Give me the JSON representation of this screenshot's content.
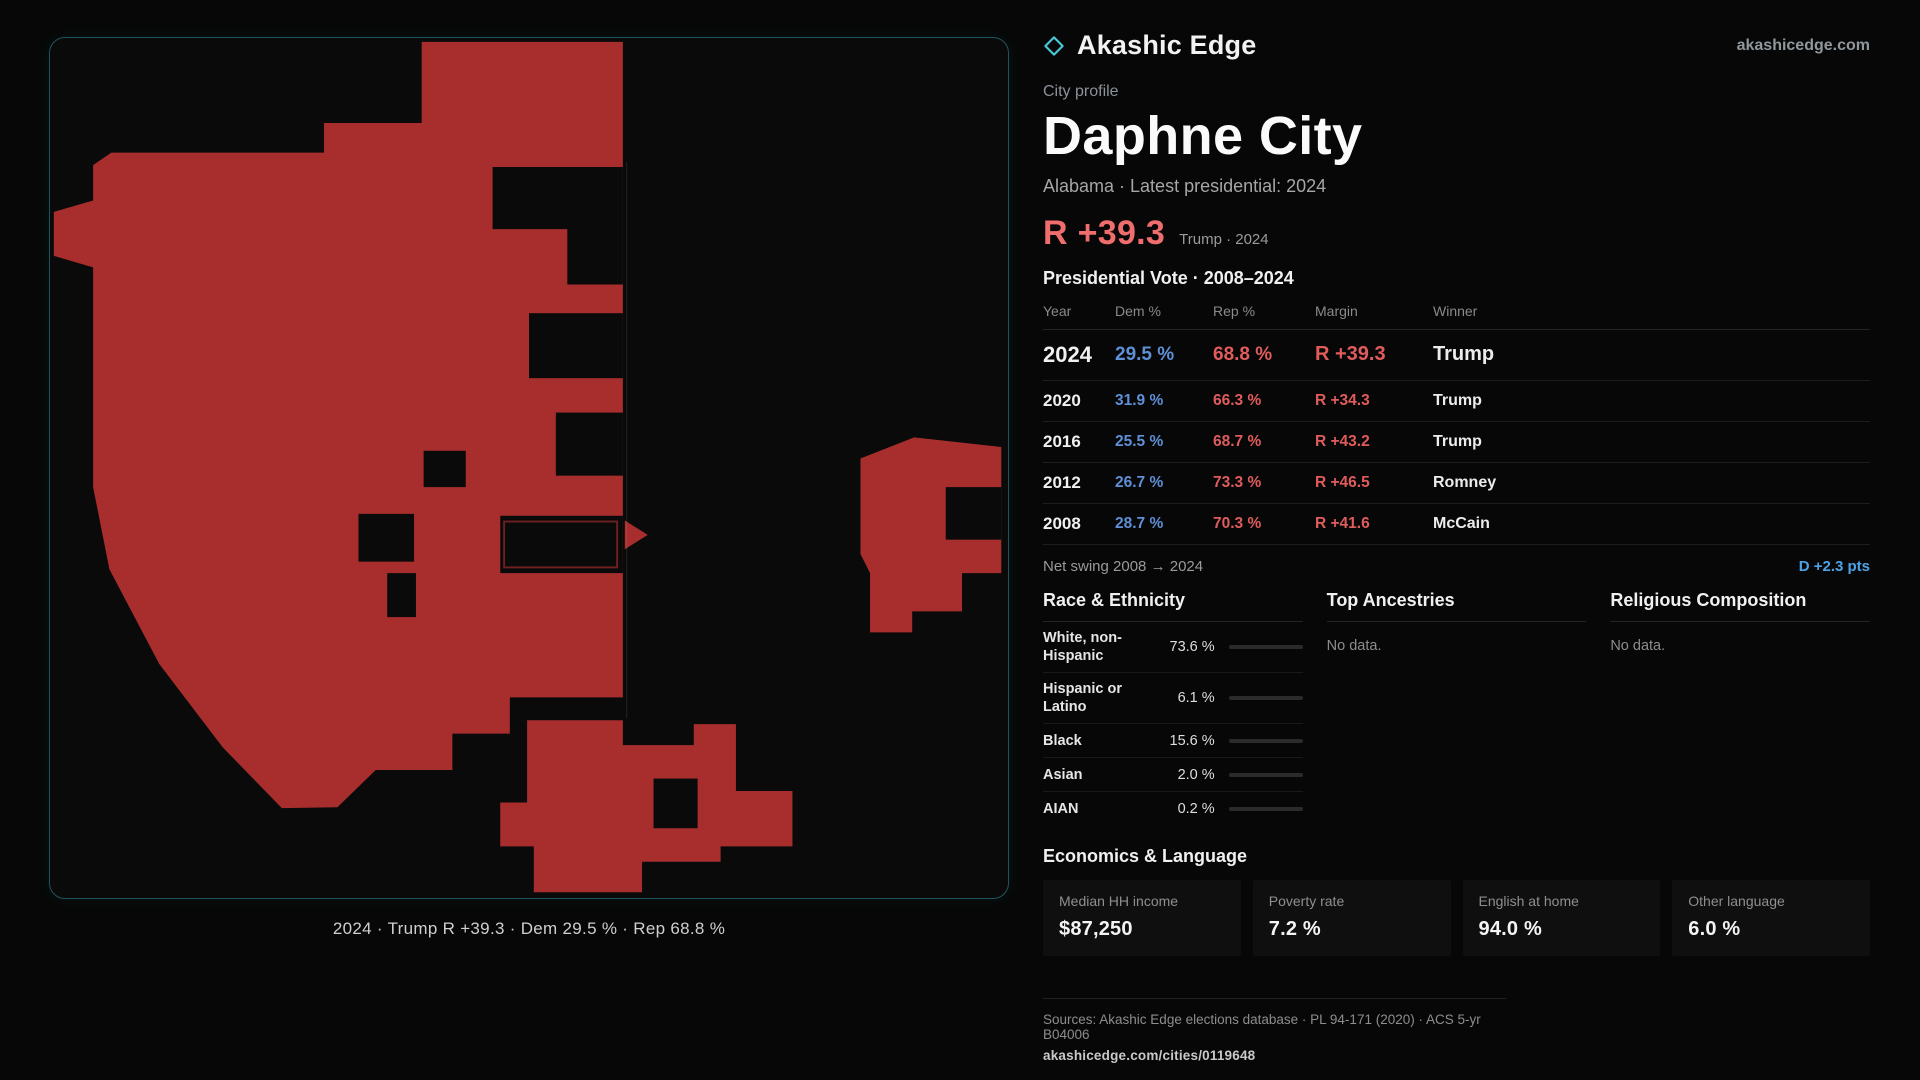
{
  "brand": {
    "name": "Akashic Edge",
    "domain": "akashicedge.com",
    "accent": "#49c7d6"
  },
  "profile": {
    "kicker": "City profile",
    "title": "Daphne City",
    "subtitle": "Alabama · Latest presidential: 2024",
    "headline_margin": "R +39.3",
    "headline_context": "Trump · 2024"
  },
  "map": {
    "caption": "2024 · Trump R +39.3 · Dem 29.5 % · Rep 68.8 %",
    "fill_color": "#a82e2e"
  },
  "vote_table": {
    "title": "Presidential Vote · 2008–2024",
    "columns": [
      "Year",
      "Dem %",
      "Rep %",
      "Margin",
      "Winner"
    ],
    "rows": [
      {
        "year": "2024",
        "dem": "29.5 %",
        "rep": "68.8 %",
        "margin": "R +39.3",
        "winner": "Trump"
      },
      {
        "year": "2020",
        "dem": "31.9 %",
        "rep": "66.3 %",
        "margin": "R +34.3",
        "winner": "Trump"
      },
      {
        "year": "2016",
        "dem": "25.5 %",
        "rep": "68.7 %",
        "margin": "R +43.2",
        "winner": "Trump"
      },
      {
        "year": "2012",
        "dem": "26.7 %",
        "rep": "73.3 %",
        "margin": "R +46.5",
        "winner": "Romney"
      },
      {
        "year": "2008",
        "dem": "28.7 %",
        "rep": "70.3 %",
        "margin": "R +41.6",
        "winner": "McCain"
      }
    ],
    "net_swing_label": "Net swing 2008 → 2024",
    "net_swing_value": "D +2.3 pts"
  },
  "demographics": {
    "race": {
      "title": "Race & Ethnicity",
      "rows": [
        {
          "label": "White, non-Hispanic",
          "value": "73.6 %",
          "pct": 73.6,
          "color": "#aab4c6"
        },
        {
          "label": "Hispanic or Latino",
          "value": "6.1 %",
          "pct": 6.1,
          "color": "#e8a23c"
        },
        {
          "label": "Black",
          "value": "15.6 %",
          "pct": 15.6,
          "color": "#9d8fe0"
        },
        {
          "label": "Asian",
          "value": "2.0 %",
          "pct": 2.0,
          "color": "#45c08a"
        },
        {
          "label": "AIAN",
          "value": "0.2 %",
          "pct": 0.2,
          "color": "#9aa0a8"
        }
      ]
    },
    "ancestries": {
      "title": "Top Ancestries",
      "empty": "No data."
    },
    "religion": {
      "title": "Religious Composition",
      "empty": "No data."
    }
  },
  "economics": {
    "title": "Economics & Language",
    "cards": [
      {
        "label": "Median HH income",
        "value": "$87,250"
      },
      {
        "label": "Poverty rate",
        "value": "7.2 %"
      },
      {
        "label": "English at home",
        "value": "94.0 %"
      },
      {
        "label": "Other language",
        "value": "6.0 %"
      }
    ]
  },
  "footer": {
    "sources": "Sources: Akashic Edge elections database · PL 94-171 (2020) · ACS 5-yr B04006",
    "permalink": "akashicedge.com/cities/0119648"
  }
}
